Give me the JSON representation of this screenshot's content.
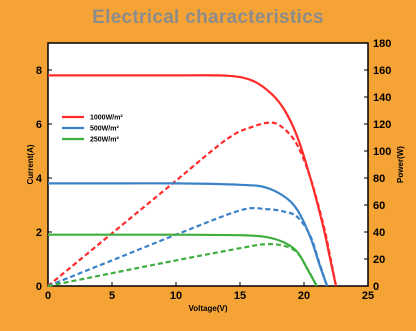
{
  "title": "Electrical characteristics",
  "colors": {
    "background": "#f6a336",
    "title": "#8c8c8c",
    "plot_bg": "#ffffff",
    "red": "#ff2a2a",
    "blue": "#3b82c8",
    "green": "#3fae3f"
  },
  "chart_data": {
    "type": "line",
    "title": "Electrical characteristics",
    "xlabel": "Voltage(V)",
    "ylabel": "Current(A)",
    "y2label": "Power(W)",
    "xlim": [
      0,
      25
    ],
    "ylim": [
      0,
      9
    ],
    "y2lim": [
      0,
      180
    ],
    "xticks": [
      "0",
      "5",
      "10",
      "15",
      "20",
      "25"
    ],
    "yticks": [
      "0",
      "2",
      "4",
      "6",
      "8"
    ],
    "y2ticks": [
      "0",
      "20",
      "40",
      "60",
      "80",
      "100",
      "120",
      "140",
      "160",
      "180"
    ],
    "legend_position": "left",
    "legend": [
      {
        "label": "1000W/m²",
        "color": "#ff2a2a"
      },
      {
        "label": "500W/m²",
        "color": "#3b82c8"
      },
      {
        "label": "250W/m²",
        "color": "#3fae3f"
      }
    ],
    "series": [
      {
        "name": "1000W/m²",
        "kind": "current",
        "axis": "left",
        "color": "#ff2a2a",
        "x": [
          0,
          5,
          10,
          14,
          16,
          17.5,
          18.5,
          19.5,
          20.5,
          21.5,
          22,
          22.5
        ],
        "y": [
          7.8,
          7.8,
          7.8,
          7.79,
          7.6,
          7.1,
          6.5,
          5.5,
          4.0,
          2.2,
          1.1,
          0
        ]
      },
      {
        "name": "1000W/m²",
        "kind": "power",
        "axis": "right",
        "color": "#ff2a2a",
        "x": [
          0,
          5,
          10,
          14,
          16,
          17.5,
          18.5,
          19.5,
          20.5,
          21.5,
          22,
          22.5
        ],
        "y": [
          0,
          39,
          78,
          109,
          118,
          121,
          116,
          104,
          80,
          46,
          24,
          0
        ]
      },
      {
        "name": "500W/m²",
        "kind": "current",
        "axis": "left",
        "color": "#3b82c8",
        "x": [
          0,
          5,
          10,
          15,
          17,
          18.5,
          19.5,
          20.5,
          21.2,
          21.8
        ],
        "y": [
          3.8,
          3.8,
          3.8,
          3.75,
          3.65,
          3.3,
          2.8,
          1.8,
          0.8,
          0
        ]
      },
      {
        "name": "500W/m²",
        "kind": "power",
        "axis": "right",
        "color": "#3b82c8",
        "x": [
          0,
          5,
          10,
          15,
          17,
          18.5,
          19.5,
          20.5,
          21.2,
          21.8
        ],
        "y": [
          0,
          19,
          38,
          56,
          57,
          55,
          51,
          37,
          17,
          0
        ]
      },
      {
        "name": "250W/m²",
        "kind": "current",
        "axis": "left",
        "color": "#3fae3f",
        "x": [
          0,
          5,
          10,
          15,
          17,
          18.5,
          19.5,
          20.3,
          21
        ],
        "y": [
          1.9,
          1.9,
          1.9,
          1.88,
          1.82,
          1.6,
          1.25,
          0.6,
          0
        ]
      },
      {
        "name": "250W/m²",
        "kind": "power",
        "axis": "right",
        "color": "#3fae3f",
        "x": [
          0,
          5,
          10,
          15,
          17,
          18.5,
          19.5,
          20.3,
          21
        ],
        "y": [
          0,
          9.5,
          19,
          28,
          31,
          29.6,
          24.4,
          12.2,
          0
        ]
      }
    ]
  }
}
